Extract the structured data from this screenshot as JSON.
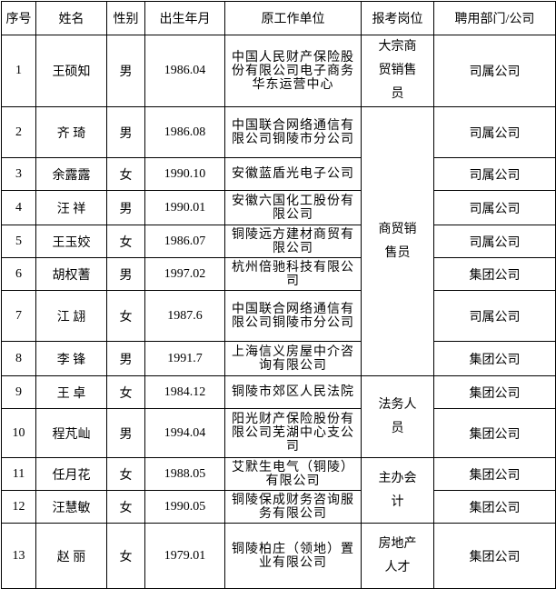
{
  "table": {
    "header": [
      "序号",
      "姓名",
      "性别",
      "出生年月",
      "原工作单位",
      "报考岗位",
      "聘用部门/公司"
    ],
    "rows": [
      [
        "1",
        "王硕知",
        "男",
        "1986.04",
        "中国人民财产保险股份有限公司电子商务华东运营中心",
        "司属公司"
      ],
      [
        "2",
        "齐 琦",
        "男",
        "1986.08",
        "中国联合网络通信有限公司铜陵市分公司",
        "司属公司"
      ],
      [
        "3",
        "余露露",
        "女",
        "1990.10",
        "安徽蓝盾光电子公司",
        "司属公司"
      ],
      [
        "4",
        "汪 祥",
        "男",
        "1990.01",
        "安徽六国化工股份有限公司",
        "司属公司"
      ],
      [
        "5",
        "王玉姣",
        "女",
        "1986.07",
        "铜陵远方建材商贸有限公司",
        "司属公司"
      ],
      [
        "6",
        "胡权蓍",
        "男",
        "1997.02",
        "杭州倍驰科技有限公司",
        "集团公司"
      ],
      [
        "7",
        "江 翃",
        "女",
        "1987.6",
        "中国联合网络通信有限公司铜陵市分公司",
        "司属公司"
      ],
      [
        "8",
        "李 锋",
        "男",
        "1991.7",
        "上海信义房屋中介咨询有限公司",
        "集团公司"
      ],
      [
        "9",
        "王 卓",
        "女",
        "1984.12",
        "铜陵市郊区人民法院",
        "集团公司"
      ],
      [
        "10",
        "程芃屾",
        "男",
        "1994.04",
        "阳光财产保险股份有限公司芜湖中心支公司",
        "集团公司"
      ],
      [
        "11",
        "任月花",
        "女",
        "1988.05",
        "艾默生电气（铜陵）有限公司",
        "集团公司"
      ],
      [
        "12",
        "汪慧敏",
        "女",
        "1990.05",
        "铜陵保成财务咨询服务有限公司",
        "集团公司"
      ],
      [
        "13",
        "赵 丽",
        "女",
        "1979.01",
        "铜陵柏庄（领地）置业有限公司",
        "集团公司"
      ]
    ],
    "positions": [
      "大宗商贸销售员",
      "商贸销售员",
      "法务人员",
      "主办会计",
      "房地产人才"
    ]
  }
}
